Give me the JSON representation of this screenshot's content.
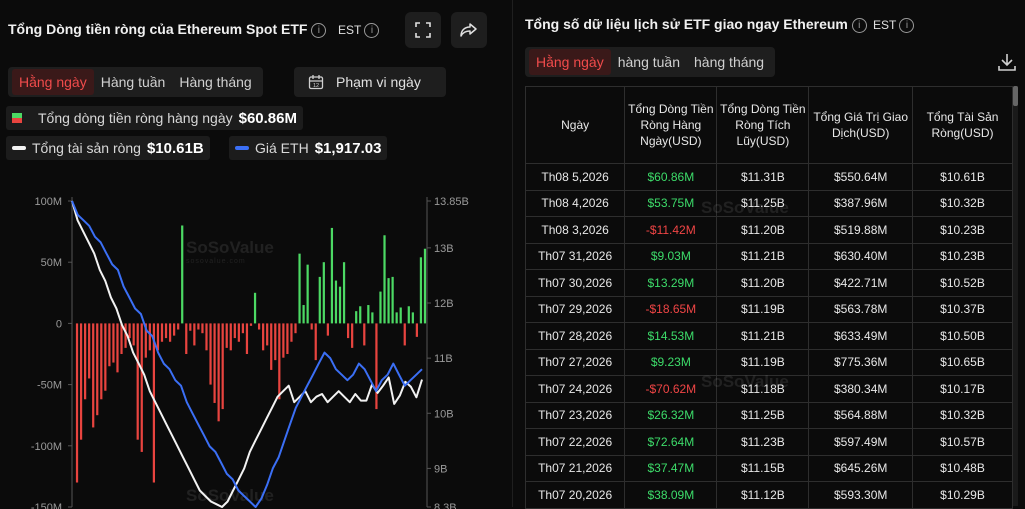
{
  "left": {
    "title": "Tổng Dòng tiền ròng của Ethereum Spot ETF",
    "timezone": "EST",
    "tabs": [
      "Hằng ngày",
      "Hàng tuần",
      "Hàng tháng"
    ],
    "active_tab": 0,
    "date_range_label": "Phạm vi ngày",
    "legend": {
      "flow_label": "Tổng dòng tiền ròng hàng ngày",
      "flow_value": "$60.86M",
      "nav_label": "Tổng tài sản ròng",
      "nav_value": "$10.61B",
      "eth_label": "Giá ETH",
      "eth_value": "$1,917.03"
    },
    "watermark": "SoSoValue",
    "watermark_sub": "sosovalue.com"
  },
  "right": {
    "title": "Tổng số dữ liệu lịch sử ETF giao ngay Ethereum",
    "timezone": "EST",
    "tabs": [
      "Hằng ngày",
      "hàng tuần",
      "hàng tháng"
    ],
    "active_tab": 0,
    "columns": [
      "Ngày",
      "Tổng Dòng Tiền Ròng Hàng Ngày(USD)",
      "Tổng Dòng Tiền Ròng Tích Lũy(USD)",
      "Tổng Giá Trị Giao Dịch(USD)",
      "Tổng Tài Sản Ròng(USD)"
    ],
    "rows": [
      [
        "Th08 5,2026",
        "$60.86M",
        "$11.31B",
        "$550.64M",
        "$10.61B"
      ],
      [
        "Th08 4,2026",
        "$53.75M",
        "$11.25B",
        "$387.96M",
        "$10.32B"
      ],
      [
        "Th08 3,2026",
        "-$11.42M",
        "$11.20B",
        "$519.88M",
        "$10.23B"
      ],
      [
        "Th07 31,2026",
        "$9.03M",
        "$11.21B",
        "$630.40M",
        "$10.23B"
      ],
      [
        "Th07 30,2026",
        "$13.29M",
        "$11.20B",
        "$422.71M",
        "$10.52B"
      ],
      [
        "Th07 29,2026",
        "-$18.65M",
        "$11.19B",
        "$563.78M",
        "$10.37B"
      ],
      [
        "Th07 28,2026",
        "$14.53M",
        "$11.21B",
        "$633.49M",
        "$10.50B"
      ],
      [
        "Th07 27,2026",
        "$9.23M",
        "$11.19B",
        "$775.36M",
        "$10.65B"
      ],
      [
        "Th07 24,2026",
        "-$70.62M",
        "$11.18B",
        "$380.34M",
        "$10.17B"
      ],
      [
        "Th07 23,2026",
        "$26.32M",
        "$11.25B",
        "$564.88M",
        "$10.32B"
      ],
      [
        "Th07 22,2026",
        "$72.64M",
        "$11.23B",
        "$597.49M",
        "$10.57B"
      ],
      [
        "Th07 21,2026",
        "$37.47M",
        "$11.15B",
        "$645.26M",
        "$10.48B"
      ],
      [
        "Th07 20,2026",
        "$38.09M",
        "$11.12B",
        "$593.30M",
        "$10.29B"
      ]
    ]
  },
  "colors": {
    "positive": "#3ddc6a",
    "negative": "#f04545",
    "bar_positive": "#4cd964",
    "bar_negative": "#e8443f",
    "eth_line": "#3b6ff5",
    "nav_line": "#f2f2f2",
    "accent": "#f04b4b"
  },
  "chart_data": {
    "type": "bar",
    "title": "",
    "y_left": {
      "ticks": [
        "100M",
        "50M",
        "0",
        "-50M",
        "-100M",
        "-150M"
      ],
      "ylim": [
        -150,
        100
      ],
      "unit": "M USD"
    },
    "y_right": {
      "ticks": [
        "13.85B",
        "13B",
        "12B",
        "11B",
        "10B",
        "9B",
        "8.3B"
      ],
      "ylim": [
        8.3,
        13.85
      ],
      "unit": "B USD"
    },
    "grid": false,
    "series": [
      {
        "name": "Tổng dòng tiền ròng hàng ngày",
        "type": "bar",
        "values": [
          -130,
          -95,
          -62,
          -45,
          -85,
          -75,
          -62,
          -55,
          -35,
          -32,
          -40,
          -25,
          -20,
          -12,
          -18,
          -95,
          -105,
          -28,
          -22,
          -130,
          -22,
          -15,
          -12,
          -15,
          -10,
          -5,
          80,
          -25,
          -6,
          -18,
          -5,
          -8,
          -22,
          -50,
          -65,
          -80,
          -70,
          -20,
          -22,
          -12,
          -15,
          -8,
          -25,
          -2,
          25,
          -5,
          -22,
          -18,
          -38,
          -30,
          -62,
          -28,
          -25,
          -15,
          -8,
          57,
          15,
          48,
          -5,
          -30,
          38,
          50,
          -10,
          78,
          35,
          30,
          50,
          -12,
          -20,
          10,
          14,
          -18,
          15,
          9,
          -70,
          26,
          72,
          37,
          38,
          9,
          13,
          -18,
          14,
          9,
          -11,
          54,
          61
        ]
      },
      {
        "name": "Giá ETH",
        "type": "line",
        "values": [
          13.85,
          13.6,
          13.5,
          13.4,
          13.2,
          13.1,
          12.9,
          12.7,
          12.6,
          12.3,
          12.1,
          11.9,
          11.8,
          11.5,
          11.4,
          11.1,
          10.9,
          10.8,
          10.6,
          10.5,
          10.2,
          10.0,
          9.8,
          9.6,
          9.4,
          9.3,
          9.1,
          8.9,
          8.8,
          8.6,
          8.5,
          8.4,
          8.3,
          8.45,
          8.7,
          9.0,
          9.2,
          9.5,
          9.8,
          10.1,
          10.3,
          10.5,
          10.7,
          10.9,
          11.1,
          11.0,
          10.8,
          10.7,
          10.6,
          10.7,
          10.9,
          10.8,
          10.6,
          10.4,
          10.6,
          10.7,
          10.9,
          10.7,
          10.5,
          10.6,
          10.7,
          10.8
        ]
      },
      {
        "name": "Tổng tài sản ròng",
        "type": "line",
        "values": [
          13.85,
          13.5,
          13.3,
          13.1,
          12.9,
          12.6,
          12.4,
          12.1,
          11.9,
          11.6,
          11.4,
          11.1,
          10.9,
          10.7,
          10.4,
          10.2,
          10.0,
          9.8,
          9.6,
          9.4,
          9.2,
          9.0,
          8.8,
          8.6,
          8.5,
          8.4,
          8.35,
          8.3,
          8.4,
          8.6,
          8.8,
          9.0,
          9.3,
          9.5,
          9.7,
          9.9,
          10.1,
          10.3,
          10.4,
          10.5,
          10.2,
          10.3,
          10.4,
          10.2,
          10.3,
          10.35,
          10.2,
          10.3,
          10.4,
          10.3,
          10.2,
          10.35,
          10.23,
          10.23,
          10.52,
          10.37,
          10.5,
          10.65,
          10.17,
          10.32,
          10.57,
          10.48,
          10.29,
          10.61
        ]
      }
    ]
  }
}
